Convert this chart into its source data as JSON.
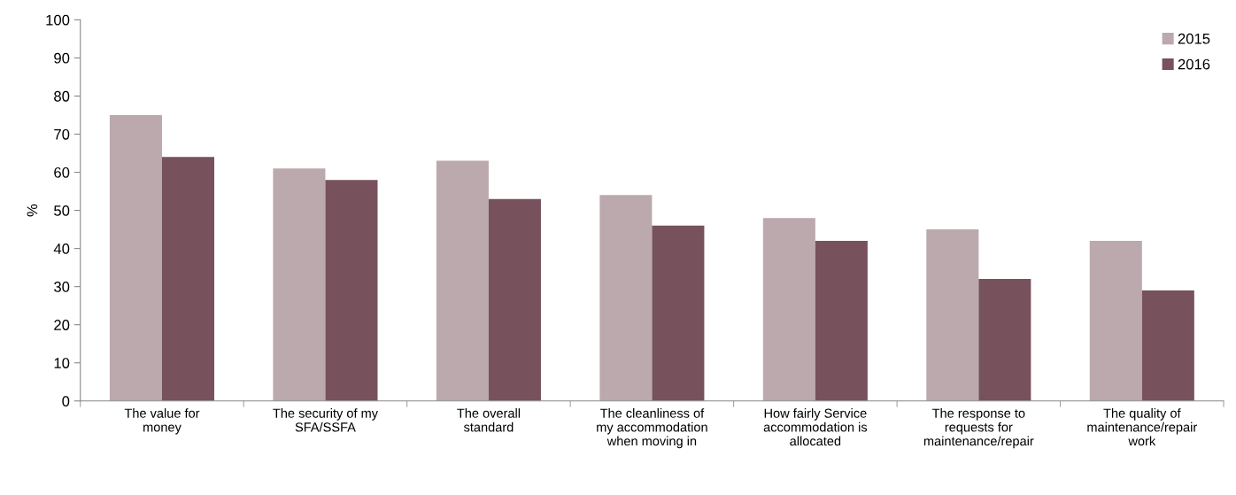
{
  "chart_data": {
    "type": "bar",
    "ylabel": "%",
    "categories": [
      "The value for money",
      "The security of my SFA/SSFA",
      "The overall standard",
      "The cleanliness of my accommodation when moving in",
      "How fairly Service accommodation is allocated",
      "The response to requests for maintenance/repair",
      "The quality of maintenance/repair work"
    ],
    "series": [
      {
        "name": "2015",
        "color": "#bba9ad",
        "values": [
          75,
          61,
          63,
          54,
          48,
          45,
          42
        ]
      },
      {
        "name": "2016",
        "color": "#77515c",
        "values": [
          64,
          58,
          53,
          46,
          42,
          32,
          29
        ]
      }
    ],
    "ylim": [
      0,
      100
    ],
    "yticks": [
      0,
      10,
      20,
      30,
      40,
      50,
      60,
      70,
      80,
      90,
      100
    ],
    "grid": false,
    "legend": "top right"
  }
}
